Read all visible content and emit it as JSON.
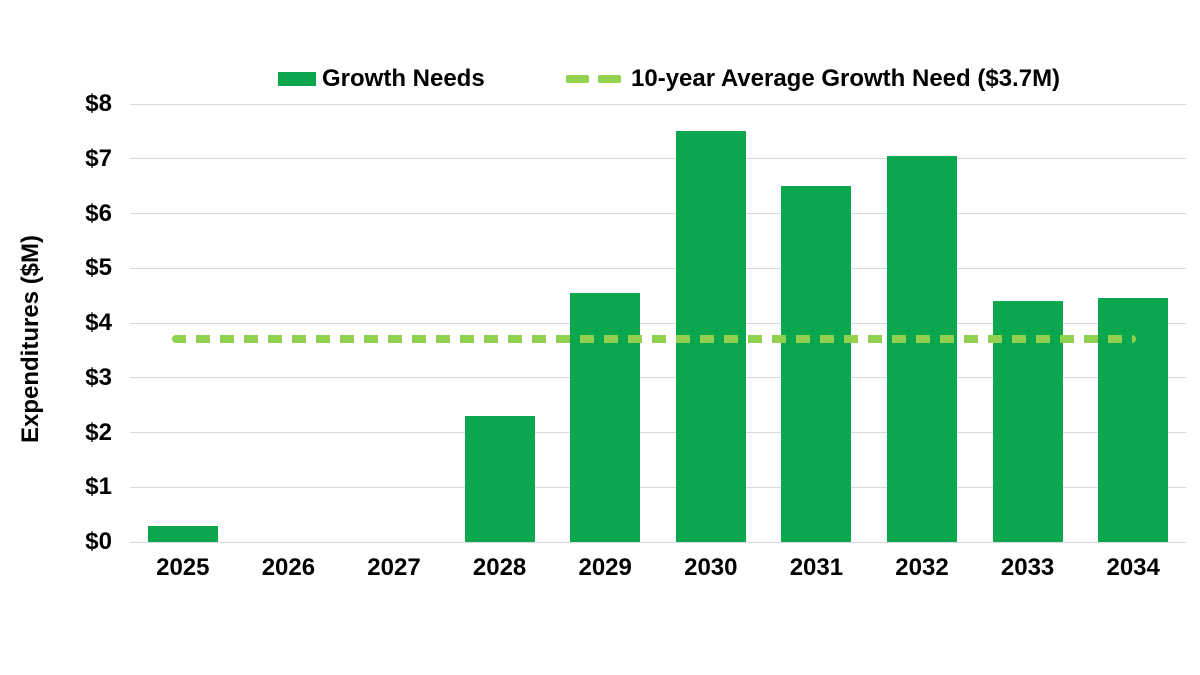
{
  "chart_data": {
    "type": "bar",
    "title": "",
    "categories": [
      "2025",
      "2026",
      "2027",
      "2028",
      "2029",
      "2030",
      "2031",
      "2032",
      "2033",
      "2034"
    ],
    "series": [
      {
        "name": "Growth Needs",
        "color": "#0aa74e",
        "values": [
          0.3,
          0,
          0,
          2.3,
          4.55,
          7.5,
          6.5,
          7.05,
          4.4,
          4.45
        ]
      }
    ],
    "average_line": {
      "name": "10-year Average Growth Need ($3.7M)",
      "value": 3.7,
      "color": "#92d050",
      "style": "dashed"
    },
    "xlabel": "",
    "ylabel": "Expenditures ($M)",
    "ylim": [
      0,
      8
    ],
    "yticks": [
      0,
      1,
      2,
      3,
      4,
      5,
      6,
      7,
      8
    ],
    "ytick_labels": [
      "$0",
      "$1",
      "$2",
      "$3",
      "$4",
      "$5",
      "$6",
      "$7",
      "$8"
    ],
    "grid": true,
    "legend_position": "top",
    "legend": [
      {
        "label": "Growth Needs",
        "swatch": "bar",
        "color": "#0aa74e"
      },
      {
        "label": "10-year Average Growth Need ($3.7M)",
        "swatch": "dashed-line",
        "color": "#92d050"
      }
    ],
    "colors": {
      "bar": "#0aa74e",
      "average_line": "#92d050",
      "gridline": "#d9d9d9",
      "text": "#000000",
      "background": "#ffffff"
    }
  }
}
